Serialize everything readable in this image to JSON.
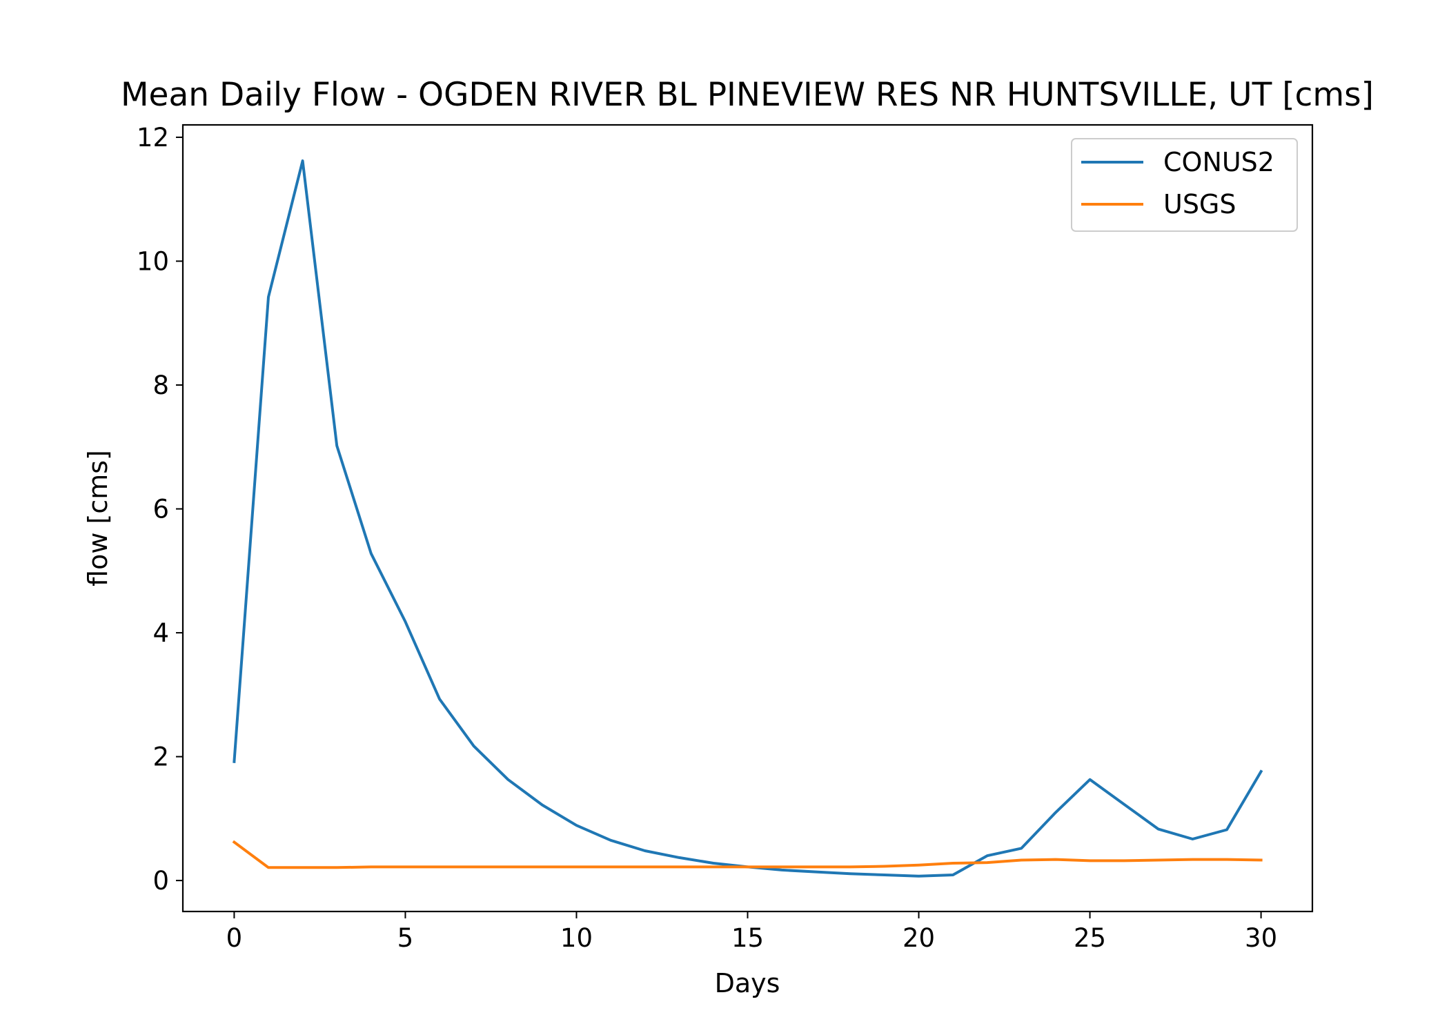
{
  "chart_data": {
    "type": "line",
    "title": "Mean Daily Flow - OGDEN RIVER BL PINEVIEW RES NR HUNTSVILLE, UT [cms]",
    "xlabel": "Days",
    "ylabel": "flow [cms]",
    "xlim": [
      -1.5,
      31.5
    ],
    "ylim": [
      -0.5,
      12.2
    ],
    "xticks": [
      0,
      5,
      10,
      15,
      20,
      25,
      30
    ],
    "yticks": [
      0,
      2,
      4,
      6,
      8,
      10,
      12
    ],
    "grid": false,
    "legend_position": "top-right",
    "x": [
      0,
      1,
      2,
      3,
      4,
      5,
      6,
      7,
      8,
      9,
      10,
      11,
      12,
      13,
      14,
      15,
      16,
      17,
      18,
      19,
      20,
      21,
      22,
      23,
      24,
      25,
      26,
      27,
      28,
      29,
      30
    ],
    "series": [
      {
        "name": "CONUS2",
        "color": "#1f77b4",
        "values": [
          1.92,
          9.42,
          11.62,
          7.02,
          5.28,
          4.18,
          2.93,
          2.17,
          1.63,
          1.22,
          0.89,
          0.65,
          0.48,
          0.37,
          0.28,
          0.22,
          0.17,
          0.14,
          0.11,
          0.09,
          0.07,
          0.09,
          0.4,
          0.52,
          1.1,
          1.63,
          1.23,
          0.83,
          0.67,
          0.82,
          1.76
        ]
      },
      {
        "name": "USGS",
        "color": "#ff7f0e",
        "values": [
          0.62,
          0.21,
          0.21,
          0.21,
          0.22,
          0.22,
          0.22,
          0.22,
          0.22,
          0.22,
          0.22,
          0.22,
          0.22,
          0.22,
          0.22,
          0.22,
          0.22,
          0.22,
          0.22,
          0.23,
          0.25,
          0.28,
          0.29,
          0.33,
          0.34,
          0.32,
          0.32,
          0.33,
          0.34,
          0.34,
          0.33
        ]
      }
    ]
  }
}
